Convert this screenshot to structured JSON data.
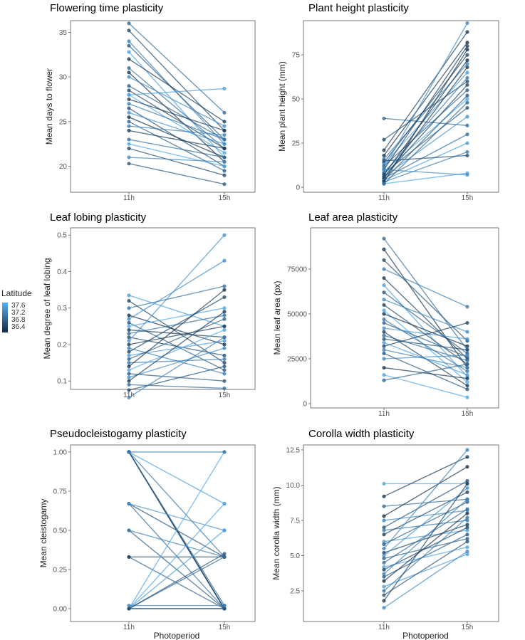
{
  "legend": {
    "title": "Latitude",
    "ticks": [
      "37.6",
      "37.2",
      "36.8",
      "36.4"
    ],
    "tick_values": [
      37.6,
      37.2,
      36.8,
      36.4
    ],
    "range": [
      36.3,
      37.7
    ],
    "low_color": "#132B43",
    "high_color": "#56B1F7"
  },
  "chart_data": [
    {
      "type": "line",
      "title": "Flowering time plasticity",
      "xlabel": "",
      "ylabel": "Mean days to flower",
      "categories": [
        "11h",
        "15h"
      ],
      "ylim": [
        17.1,
        36.3
      ],
      "yticks": [
        20,
        25,
        30,
        35
      ],
      "ytick_labels": [
        "20",
        "25",
        "30",
        "35"
      ],
      "pairs": [
        [
          36,
          26,
          37.0
        ],
        [
          35.2,
          24,
          36.6
        ],
        [
          34,
          22.5,
          37.2
        ],
        [
          33.5,
          23,
          36.8
        ],
        [
          32.8,
          21,
          37.5
        ],
        [
          32,
          25,
          36.5
        ],
        [
          31,
          22,
          37.0
        ],
        [
          30.5,
          20.5,
          36.4
        ],
        [
          30,
          24.5,
          37.3
        ],
        [
          29,
          23,
          36.9
        ],
        [
          28.5,
          22,
          36.6
        ],
        [
          28,
          21.5,
          37.6
        ],
        [
          27.5,
          24,
          36.5
        ],
        [
          27,
          23,
          37.1
        ],
        [
          26.5,
          20,
          36.7
        ],
        [
          26,
          22.5,
          37.4
        ],
        [
          25.5,
          21,
          36.4
        ],
        [
          25,
          19.5,
          36.9
        ],
        [
          24.5,
          23.5,
          37.2
        ],
        [
          24,
          22,
          36.5
        ],
        [
          23,
          21,
          37.0
        ],
        [
          22.5,
          20,
          37.6
        ],
        [
          22,
          19,
          36.6
        ],
        [
          21,
          20.5,
          37.3
        ],
        [
          20.3,
          18,
          36.8
        ],
        [
          28,
          28.7,
          37.5
        ]
      ]
    },
    {
      "type": "line",
      "title": "Plant height plasticity",
      "xlabel": "",
      "ylabel": "Mean plant height (mm)",
      "categories": [
        "11h",
        "15h"
      ],
      "ylim": [
        -2.8,
        94.4
      ],
      "yticks": [
        0,
        25,
        50,
        75
      ],
      "ytick_labels": [
        "0",
        "25",
        "50",
        "75"
      ],
      "pairs": [
        [
          39,
          35,
          37.0
        ],
        [
          27,
          60,
          36.7
        ],
        [
          21,
          88,
          36.5
        ],
        [
          18,
          82,
          36.4
        ],
        [
          16,
          70,
          37.2
        ],
        [
          14,
          75,
          36.6
        ],
        [
          13,
          65,
          37.5
        ],
        [
          12,
          55,
          36.9
        ],
        [
          11,
          93,
          37.3
        ],
        [
          10,
          80,
          36.5
        ],
        [
          9,
          50,
          37.6
        ],
        [
          8,
          45,
          36.8
        ],
        [
          8,
          62,
          37.1
        ],
        [
          7,
          72,
          36.4
        ],
        [
          6,
          40,
          37.4
        ],
        [
          6,
          58,
          36.6
        ],
        [
          5,
          30,
          37.0
        ],
        [
          5,
          68,
          36.5
        ],
        [
          4,
          25,
          37.5
        ],
        [
          4,
          52,
          36.8
        ],
        [
          3,
          20,
          37.2
        ],
        [
          3,
          78,
          36.4
        ],
        [
          2,
          8,
          37.6
        ],
        [
          2,
          48,
          36.9
        ],
        [
          10,
          7,
          37.3
        ],
        [
          15,
          18,
          36.7
        ]
      ]
    },
    {
      "type": "line",
      "title": "Leaf lobing plasticity",
      "xlabel": "",
      "ylabel": "Mean degree of leaf lobing",
      "categories": [
        "11h",
        "15h"
      ],
      "ylim": [
        0.077,
        0.52
      ],
      "yticks": [
        0.1,
        0.2,
        0.3,
        0.4,
        0.5
      ],
      "ytick_labels": [
        "0.1",
        "0.2",
        "0.3",
        "0.4",
        "0.5"
      ],
      "pairs": [
        [
          0.335,
          0.25,
          37.5
        ],
        [
          0.32,
          0.15,
          36.6
        ],
        [
          0.3,
          0.36,
          37.1
        ],
        [
          0.28,
          0.2,
          36.4
        ],
        [
          0.27,
          0.43,
          37.3
        ],
        [
          0.26,
          0.13,
          36.8
        ],
        [
          0.25,
          0.3,
          37.6
        ],
        [
          0.24,
          0.22,
          36.5
        ],
        [
          0.23,
          0.28,
          37.0
        ],
        [
          0.22,
          0.17,
          36.7
        ],
        [
          0.21,
          0.5,
          37.4
        ],
        [
          0.2,
          0.25,
          36.5
        ],
        [
          0.19,
          0.12,
          37.2
        ],
        [
          0.18,
          0.33,
          36.6
        ],
        [
          0.17,
          0.21,
          37.5
        ],
        [
          0.16,
          0.27,
          36.9
        ],
        [
          0.15,
          0.16,
          37.1
        ],
        [
          0.14,
          0.35,
          36.4
        ],
        [
          0.13,
          0.24,
          37.6
        ],
        [
          0.12,
          0.1,
          36.8
        ],
        [
          0.11,
          0.19,
          37.3
        ],
        [
          0.1,
          0.29,
          36.5
        ],
        [
          0.09,
          0.08,
          37.0
        ],
        [
          0.075,
          0.14,
          36.7
        ],
        [
          0.055,
          0.22,
          37.2
        ]
      ]
    },
    {
      "type": "line",
      "title": "Leaf area plasticity",
      "xlabel": "",
      "ylabel": "Mean leaf area (px)",
      "categories": [
        "11h",
        "15h"
      ],
      "ylim": [
        -2400,
        98000
      ],
      "yticks": [
        0,
        25000,
        50000,
        75000
      ],
      "ytick_labels": [
        "0",
        "25000",
        "50000",
        "75000"
      ],
      "pairs": [
        [
          92000,
          30000,
          37.0
        ],
        [
          86000,
          20000,
          36.4
        ],
        [
          80000,
          35000,
          36.7
        ],
        [
          75000,
          54000,
          37.2
        ],
        [
          70000,
          25000,
          36.5
        ],
        [
          66000,
          15000,
          37.5
        ],
        [
          62000,
          28000,
          36.8
        ],
        [
          58000,
          40000,
          37.3
        ],
        [
          55000,
          22000,
          36.6
        ],
        [
          52000,
          12000,
          37.6
        ],
        [
          50000,
          32000,
          36.4
        ],
        [
          47000,
          18000,
          37.1
        ],
        [
          45000,
          26000,
          36.9
        ],
        [
          42000,
          36000,
          37.4
        ],
        [
          40000,
          10000,
          36.5
        ],
        [
          38000,
          24000,
          37.0
        ],
        [
          36000,
          30000,
          36.7
        ],
        [
          34000,
          16000,
          37.5
        ],
        [
          32000,
          45000,
          36.6
        ],
        [
          30000,
          20000,
          37.2
        ],
        [
          28000,
          8000,
          36.8
        ],
        [
          25000,
          27000,
          37.3
        ],
        [
          20000,
          14000,
          36.4
        ],
        [
          16000,
          3500,
          37.6
        ],
        [
          13000,
          22000,
          36.9
        ]
      ]
    },
    {
      "type": "line",
      "title": "Pseudocleistogamy plasticity",
      "xlabel": "Photoperiod",
      "ylabel": "Mean cleistogamy",
      "categories": [
        "11h",
        "15h"
      ],
      "ylim": [
        -0.082,
        1.045
      ],
      "yticks": [
        0,
        0.25,
        0.5,
        0.75,
        1
      ],
      "ytick_labels": [
        "0.00",
        "0.25",
        "0.50",
        "0.75",
        "1.00"
      ],
      "pairs": [
        [
          1,
          0,
          36.6
        ],
        [
          1,
          0,
          36.8
        ],
        [
          1,
          0,
          37.0
        ],
        [
          1,
          0,
          36.5
        ],
        [
          1,
          0.33,
          37.1
        ],
        [
          1,
          0.67,
          37.5
        ],
        [
          1,
          0,
          36.7
        ],
        [
          1,
          0.02,
          36.9
        ],
        [
          0.67,
          0,
          37.0
        ],
        [
          0.67,
          0.33,
          36.7
        ],
        [
          0.67,
          0.5,
          37.4
        ],
        [
          0.5,
          0,
          36.8
        ],
        [
          0.5,
          0.33,
          37.2
        ],
        [
          0.33,
          0,
          36.9
        ],
        [
          0.33,
          0.33,
          36.6
        ],
        [
          0,
          0,
          36.5
        ],
        [
          0,
          0.33,
          37.0
        ],
        [
          0,
          0.67,
          37.6
        ],
        [
          0,
          1,
          37.6
        ],
        [
          0,
          0.5,
          37.5
        ],
        [
          0,
          0,
          36.8
        ],
        [
          0.02,
          0.02,
          37.2
        ],
        [
          0,
          0.35,
          36.7
        ],
        [
          1,
          1,
          37.1
        ]
      ]
    },
    {
      "type": "line",
      "title": "Corolla width plasticity",
      "xlabel": "Photoperiod",
      "ylabel": "Mean corolla width (mm)",
      "categories": [
        "11h",
        "15h"
      ],
      "ylim": [
        0.33,
        12.85
      ],
      "yticks": [
        2.5,
        5,
        7.5,
        10,
        12.5
      ],
      "ytick_labels": [
        "2.5",
        "5.0",
        "7.5",
        "10.0",
        "12.5"
      ],
      "pairs": [
        [
          10.1,
          10.1,
          37.6
        ],
        [
          9.2,
          12,
          36.5
        ],
        [
          8.5,
          9,
          37.0
        ],
        [
          7.8,
          11.3,
          36.4
        ],
        [
          7.5,
          8.2,
          37.3
        ],
        [
          7,
          10.3,
          36.7
        ],
        [
          6.8,
          7.5,
          37.1
        ],
        [
          6.5,
          9.5,
          36.6
        ],
        [
          6,
          6.8,
          37.5
        ],
        [
          5.8,
          8.8,
          36.8
        ],
        [
          5.5,
          12.5,
          37.2
        ],
        [
          5.2,
          7.2,
          36.5
        ],
        [
          5,
          9.8,
          37.4
        ],
        [
          4.8,
          6.2,
          36.9
        ],
        [
          4.5,
          8.3,
          37.0
        ],
        [
          4.2,
          5.6,
          37.6
        ],
        [
          4,
          7,
          36.6
        ],
        [
          3.7,
          9,
          37.2
        ],
        [
          3.5,
          6.5,
          36.8
        ],
        [
          3.2,
          8,
          36.4
        ],
        [
          2.8,
          5.1,
          37.5
        ],
        [
          2.5,
          7.7,
          37.1
        ],
        [
          2.2,
          6,
          36.7
        ],
        [
          1.8,
          10.1,
          36.5
        ],
        [
          1.3,
          5.3,
          37.3
        ]
      ]
    }
  ]
}
